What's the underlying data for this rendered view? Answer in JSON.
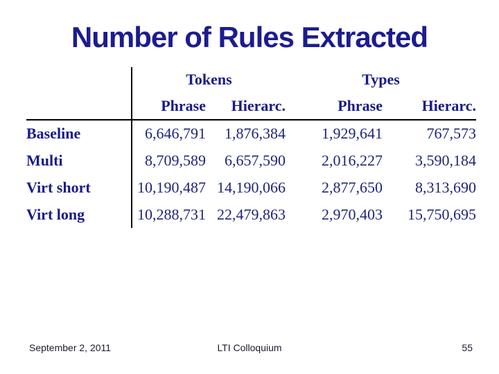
{
  "title": "Number of Rules Extracted",
  "table": {
    "groups": [
      {
        "label": "Tokens",
        "sub": [
          "Phrase",
          "Hierarc."
        ]
      },
      {
        "label": "Types",
        "sub": [
          "Phrase",
          "Hierarc."
        ]
      }
    ],
    "rows": [
      {
        "label": "Baseline",
        "values": [
          "6,646,791",
          "1,876,384",
          "1,929,641",
          "767,573"
        ]
      },
      {
        "label": "Multi",
        "values": [
          "8,709,589",
          "6,657,590",
          "2,016,227",
          "3,590,184"
        ]
      },
      {
        "label": "Virt short",
        "values": [
          "10,190,487",
          "14,190,066",
          "2,877,650",
          "8,313,690"
        ]
      },
      {
        "label": "Virt long",
        "values": [
          "10,288,731",
          "22,479,863",
          "2,970,403",
          "15,750,695"
        ]
      }
    ]
  },
  "footer": {
    "date": "September 2, 2011",
    "venue": "LTI Colloquium",
    "slide_number": "55"
  },
  "colors": {
    "background": "#ffffff",
    "title_text": "#1c1c8f",
    "table_bold_text": "#191c87",
    "table_number_text": "#1f2577",
    "rule_lines": "#000000",
    "footer_text": "#1b1b30"
  },
  "chart_data": {
    "type": "table",
    "title": "Number of Rules Extracted",
    "column_groups": [
      "Tokens",
      "Types"
    ],
    "columns": [
      "Tokens Phrase",
      "Tokens Hierarc.",
      "Types Phrase",
      "Types Hierarc."
    ],
    "row_labels": [
      "Baseline",
      "Multi",
      "Virt short",
      "Virt long"
    ],
    "values": [
      [
        6646791,
        1876384,
        1929641,
        767573
      ],
      [
        8709589,
        6657590,
        2016227,
        3590184
      ],
      [
        10190487,
        14190066,
        2877650,
        8313690
      ],
      [
        10288731,
        22479863,
        2970403,
        15750695
      ]
    ]
  }
}
